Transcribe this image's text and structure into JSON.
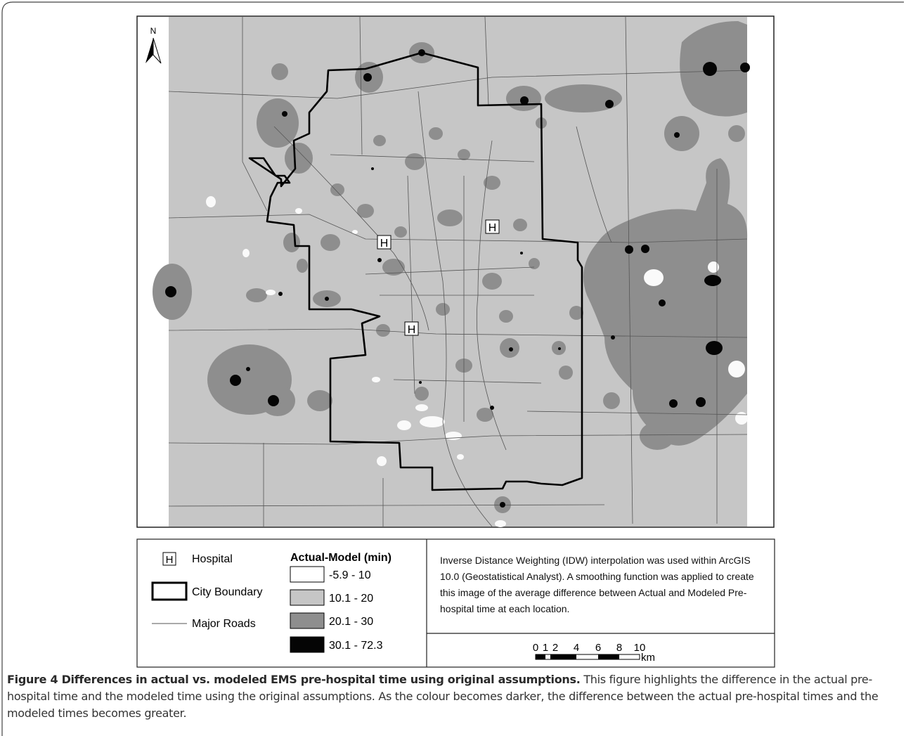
{
  "map": {
    "north_label": "N",
    "hospital_labels": [
      "H",
      "H",
      "H"
    ]
  },
  "legend": {
    "symbols": [
      {
        "symbol": "H",
        "label": "Hospital"
      },
      {
        "label": "City Boundary"
      },
      {
        "label": "Major Roads"
      }
    ],
    "class_title": "Actual-Model (min)",
    "classes": [
      "-5.9 - 10",
      "10.1 - 20",
      "20.1 - 30",
      "30.1 - 72.3"
    ],
    "note": "Inverse Distance Weighting (IDW) interpolation was used within ArcGIS 10.0 (Geostatistical Analyst). A smoothing function was applied to create this image of the average difference between Actual and Modeled Pre-hospital time at each location.",
    "scale_ticks": [
      "0",
      "1",
      "2",
      "4",
      "6",
      "8",
      "10"
    ],
    "scale_unit": "km"
  },
  "caption": {
    "title": "Figure 4 Differences in actual vs. modeled EMS pre-hospital time using original assumptions.",
    "text": "This figure highlights the difference in the actual pre-hospital time and the modeled time using the original assumptions. As the colour becomes darker, the difference between the actual pre-hospital times and the modeled times becomes greater."
  }
}
